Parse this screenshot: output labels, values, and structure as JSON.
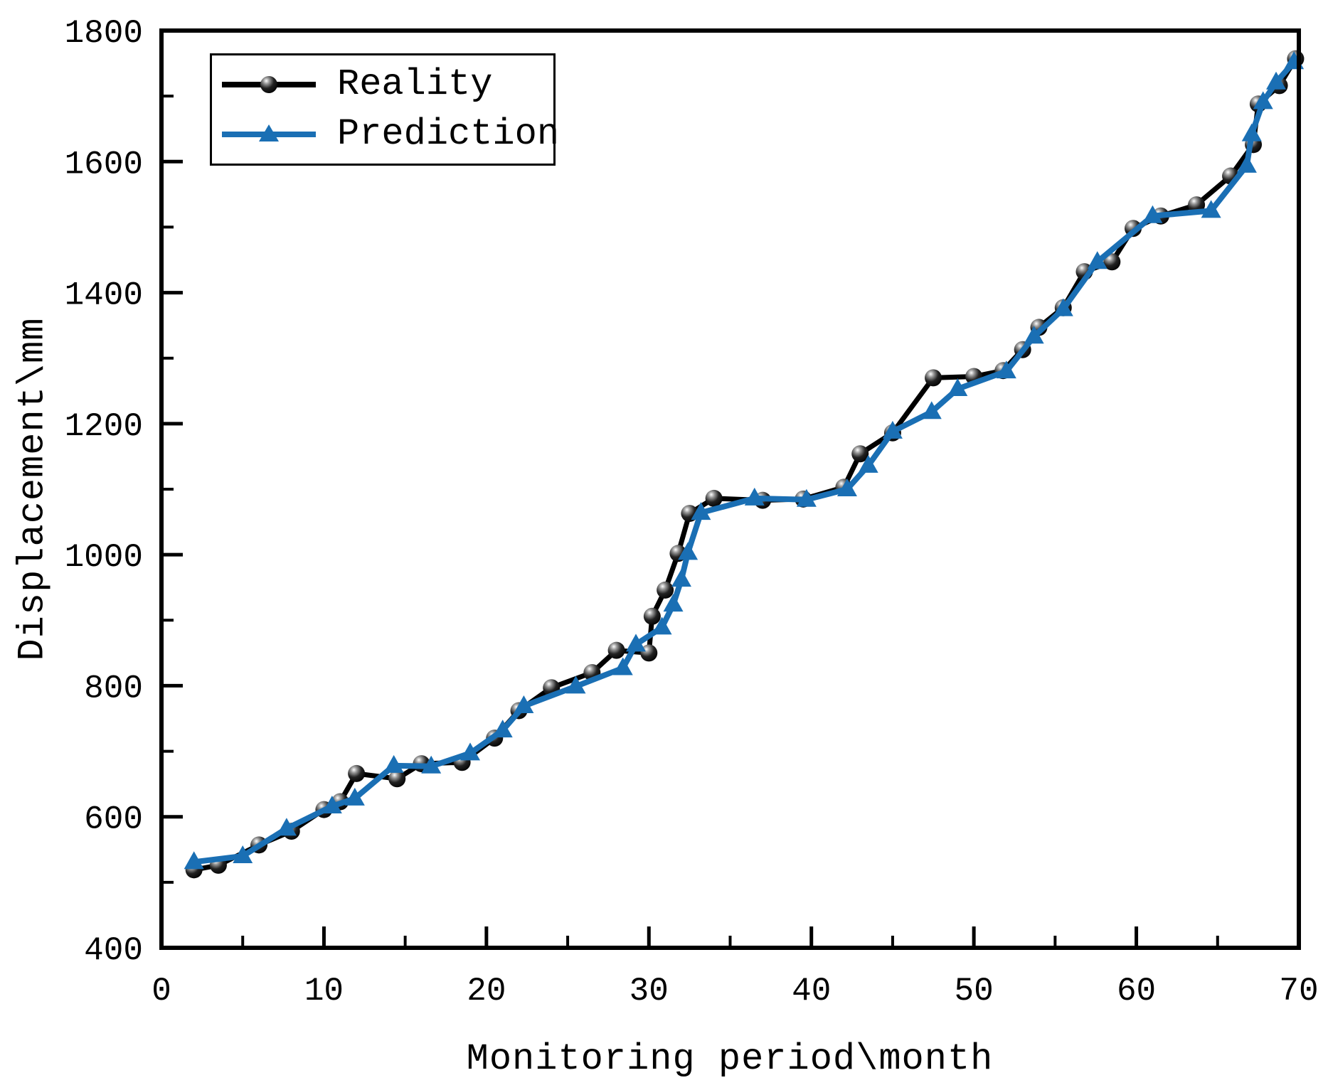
{
  "chart_data": {
    "type": "line",
    "title": "",
    "xlabel": "Monitoring period\\month",
    "ylabel": "Displacement\\mm",
    "xlim": [
      0,
      70
    ],
    "ylim": [
      400,
      1800
    ],
    "x_major_ticks": [
      0,
      10,
      20,
      30,
      40,
      50,
      60,
      70
    ],
    "x_minor_ticks": [
      5,
      15,
      25,
      35,
      45,
      55,
      65
    ],
    "y_major_ticks": [
      400,
      600,
      800,
      1000,
      1200,
      1400,
      1600,
      1800
    ],
    "y_minor_ticks": [
      500,
      700,
      900,
      1100,
      1300,
      1500,
      1700
    ],
    "grid": false,
    "legend_position": "top-left",
    "colors": {
      "reality": "#000000",
      "prediction": "#1a6fb4"
    },
    "series": [
      {
        "name": "Reality",
        "color": "#000000",
        "marker": "sphere",
        "points": [
          [
            2,
            519
          ],
          [
            3.5,
            526
          ],
          [
            6,
            557
          ],
          [
            8,
            578
          ],
          [
            10,
            611
          ],
          [
            11,
            623
          ],
          [
            12,
            666
          ],
          [
            14.5,
            658
          ],
          [
            16,
            681
          ],
          [
            18.5,
            683
          ],
          [
            20.5,
            720
          ],
          [
            22,
            762
          ],
          [
            24,
            797
          ],
          [
            26.5,
            820
          ],
          [
            28,
            854
          ],
          [
            30,
            850
          ],
          [
            30.2,
            906
          ],
          [
            31,
            946
          ],
          [
            31.8,
            1002
          ],
          [
            32.5,
            1063
          ],
          [
            34,
            1086
          ],
          [
            37,
            1083
          ],
          [
            39.5,
            1085
          ],
          [
            42,
            1103
          ],
          [
            43,
            1154
          ],
          [
            45,
            1186
          ],
          [
            47.5,
            1270
          ],
          [
            50,
            1272
          ],
          [
            51.8,
            1281
          ],
          [
            53,
            1313
          ],
          [
            54,
            1347
          ],
          [
            55.5,
            1377
          ],
          [
            56.8,
            1432
          ],
          [
            58.5,
            1447
          ],
          [
            59.8,
            1498
          ],
          [
            61.5,
            1517
          ],
          [
            63.7,
            1534
          ],
          [
            65.8,
            1578
          ],
          [
            67.2,
            1626
          ],
          [
            67.5,
            1688
          ],
          [
            68.8,
            1716
          ],
          [
            69.8,
            1757
          ]
        ]
      },
      {
        "name": "Prediction",
        "color": "#1a6fb4",
        "marker": "triangle-up",
        "points": [
          [
            2,
            531
          ],
          [
            5,
            540
          ],
          [
            7.7,
            582
          ],
          [
            10.5,
            616
          ],
          [
            11.9,
            628
          ],
          [
            14.3,
            678
          ],
          [
            16.6,
            677
          ],
          [
            19,
            697
          ],
          [
            21,
            732
          ],
          [
            22.3,
            769
          ],
          [
            25.5,
            799
          ],
          [
            28.4,
            827
          ],
          [
            29.2,
            863
          ],
          [
            30.8,
            889
          ],
          [
            31.5,
            924
          ],
          [
            32,
            962
          ],
          [
            32.4,
            1003
          ],
          [
            33.2,
            1064
          ],
          [
            36.5,
            1086
          ],
          [
            39.7,
            1084
          ],
          [
            42.2,
            1100
          ],
          [
            43.5,
            1136
          ],
          [
            45,
            1188
          ],
          [
            47.4,
            1218
          ],
          [
            49,
            1253
          ],
          [
            52,
            1280
          ],
          [
            53.7,
            1333
          ],
          [
            55.5,
            1375
          ],
          [
            57.6,
            1447
          ],
          [
            61,
            1517
          ],
          [
            64.6,
            1525
          ],
          [
            66.8,
            1594
          ],
          [
            67.1,
            1642
          ],
          [
            67.8,
            1691
          ],
          [
            68.6,
            1721
          ],
          [
            69.7,
            1752
          ]
        ]
      }
    ]
  }
}
